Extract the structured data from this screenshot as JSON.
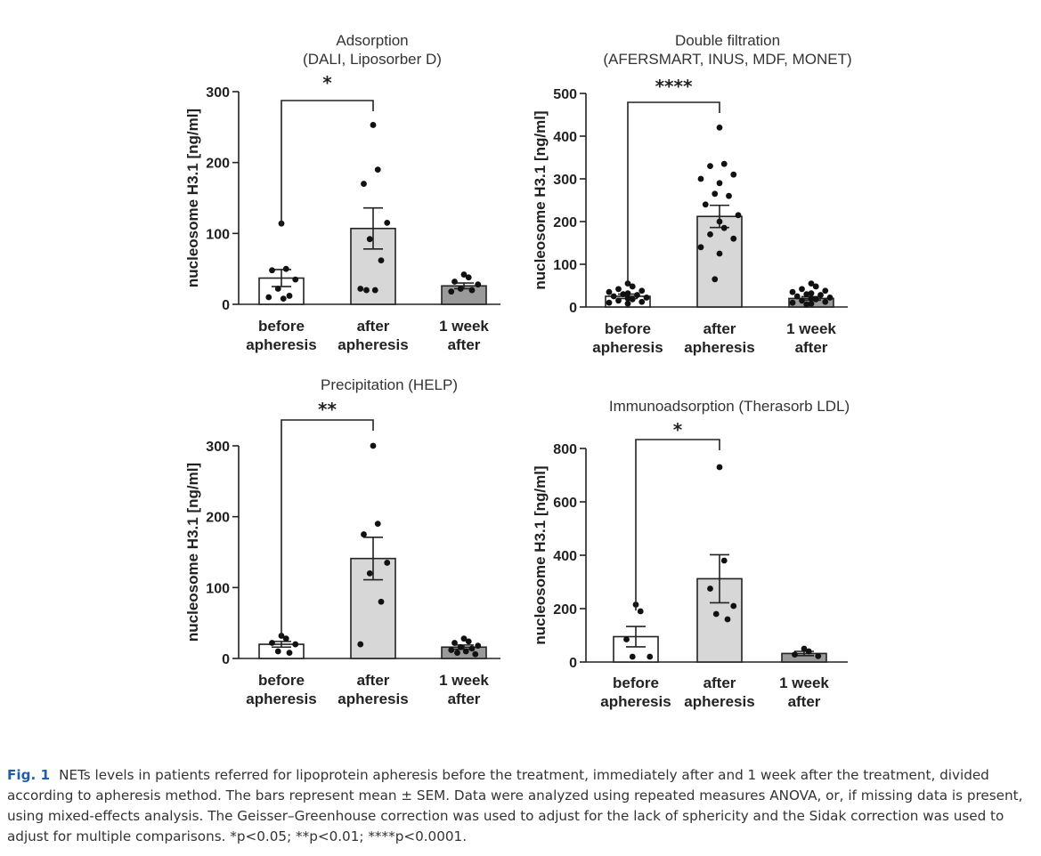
{
  "chart_data": [
    {
      "type": "bar",
      "title": [
        "Adsorption",
        "(DALI, Liposorber D)"
      ],
      "ylabel": "nucleosome H3.1 [ng/ml]",
      "ylim": [
        0,
        300
      ],
      "yticks": [
        0,
        100,
        200,
        300
      ],
      "categories": [
        [
          "before",
          "apheresis"
        ],
        [
          "after",
          "apheresis"
        ],
        [
          "1 week",
          "after"
        ]
      ],
      "values": [
        37,
        107,
        26
      ],
      "sem": [
        12,
        29,
        4
      ],
      "fills": [
        "#ffffff",
        "#d7d7d7",
        "#9a9a9a"
      ],
      "points": [
        [
          114,
          50,
          48,
          35,
          22,
          12,
          10,
          8
        ],
        [
          253,
          190,
          170,
          115,
          92,
          62,
          22,
          20,
          20
        ],
        [
          42,
          38,
          32,
          28,
          22,
          20,
          18
        ]
      ],
      "comparison": {
        "from": 0,
        "to": 1,
        "label": "*"
      }
    },
    {
      "type": "bar",
      "title": [
        "Double filtration",
        "(AFERSMART, INUS, MDF, MONET)"
      ],
      "ylabel": "nucleosome H3.1 [ng/ml]",
      "ylim": [
        0,
        500
      ],
      "yticks": [
        0,
        100,
        200,
        300,
        400,
        500
      ],
      "categories": [
        [
          "before",
          "apheresis"
        ],
        [
          "after",
          "apheresis"
        ],
        [
          "1 week",
          "after"
        ]
      ],
      "values": [
        25,
        212,
        20
      ],
      "sem": [
        5,
        26,
        4
      ],
      "fills": [
        "#ffffff",
        "#d7d7d7",
        "#9a9a9a"
      ],
      "points": [
        [
          55,
          48,
          42,
          38,
          35,
          32,
          30,
          28,
          25,
          22,
          20,
          18,
          15,
          12,
          10,
          8
        ],
        [
          420,
          335,
          330,
          310,
          300,
          290,
          265,
          260,
          240,
          215,
          200,
          185,
          170,
          160,
          140,
          125,
          65
        ],
        [
          55,
          48,
          42,
          38,
          35,
          32,
          30,
          28,
          25,
          22,
          20,
          18,
          15,
          12,
          10,
          8,
          6
        ]
      ],
      "comparison": {
        "from": 0,
        "to": 1,
        "label": "****"
      }
    },
    {
      "type": "bar",
      "title": [
        "Precipitation (HELP)"
      ],
      "ylabel": "nucleosome H3.1 [ng/ml]",
      "ylim": [
        0,
        300
      ],
      "yticks": [
        0,
        100,
        200,
        300
      ],
      "categories": [
        [
          "before",
          "apheresis"
        ],
        [
          "after",
          "apheresis"
        ],
        [
          "1 week",
          "after"
        ]
      ],
      "values": [
        20,
        141,
        16
      ],
      "sem": [
        4,
        30,
        3
      ],
      "fills": [
        "#ffffff",
        "#d7d7d7",
        "#9a9a9a"
      ],
      "points": [
        [
          32,
          28,
          22,
          20,
          10,
          8
        ],
        [
          300,
          190,
          175,
          135,
          120,
          80,
          20
        ],
        [
          28,
          24,
          22,
          18,
          16,
          14,
          12,
          10,
          8,
          6
        ]
      ],
      "comparison": {
        "from": 0,
        "to": 1,
        "label": "**"
      }
    },
    {
      "type": "bar",
      "title": [
        "Immunoadsorption (Therasorb LDL)"
      ],
      "ylabel": "nucleosome H3.1 [ng/ml]",
      "ylim": [
        0,
        800
      ],
      "yticks": [
        0,
        200,
        400,
        600,
        800
      ],
      "categories": [
        [
          "before",
          "apheresis"
        ],
        [
          "after",
          "apheresis"
        ],
        [
          "1 week",
          "after"
        ]
      ],
      "values": [
        95,
        312,
        32
      ],
      "sem": [
        38,
        90,
        8
      ],
      "fills": [
        "#ffffff",
        "#d7d7d7",
        "#9a9a9a"
      ],
      "points": [
        [
          215,
          190,
          85,
          20,
          20
        ],
        [
          730,
          380,
          275,
          210,
          180,
          160
        ],
        [
          50,
          40,
          28,
          22
        ]
      ],
      "comparison": {
        "from": 0,
        "to": 1,
        "label": "*"
      }
    }
  ],
  "caption": {
    "label": "Fig. 1",
    "text": "NETs levels in patients referred for lipoprotein apheresis before the treatment, immediately after and 1 week after the treatment, divided according to apheresis method. The bars represent mean ± SEM. Data were analyzed using repeated measures ANOVA, or, if missing data is present, using mixed-effects analysis. The Geisser–Greenhouse correction was used to adjust for the lack of sphericity and the Sidak correction was used to adjust for multiple comparisons. *p<0.05; **p<0.01; ****p<0.0001."
  }
}
